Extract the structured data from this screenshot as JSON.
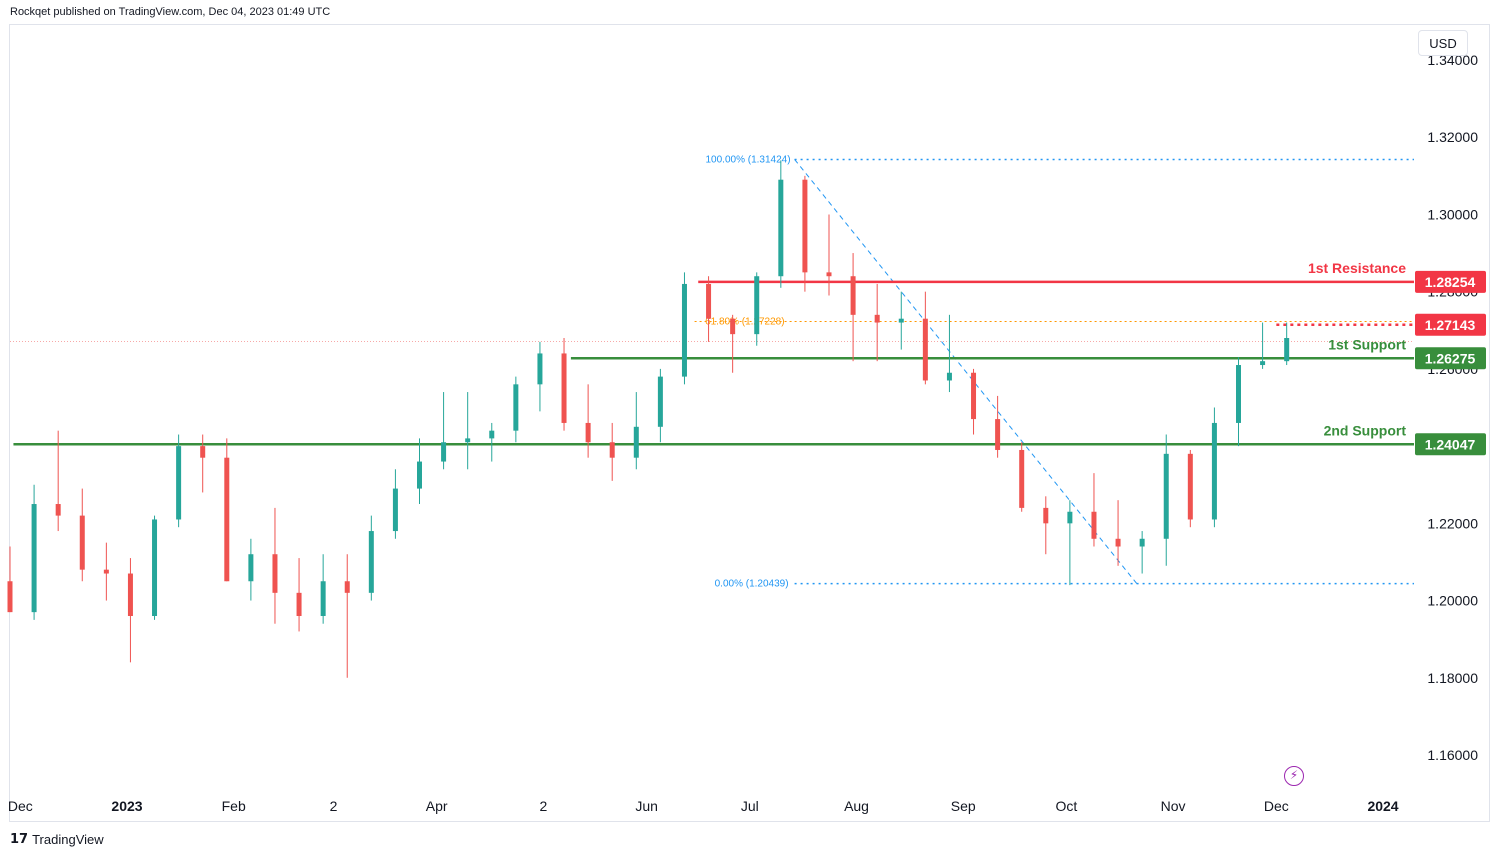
{
  "header": {
    "publisher_text": "Rockqet published on TradingView.com, Dec 04, 2023 01:49 UTC"
  },
  "toolbar": {
    "currency_label": "USD"
  },
  "footer": {
    "logo_mark": "17",
    "logo_text": "TradingView"
  },
  "chart_data": {
    "type": "candlestick",
    "symbol_hint": "GBPUSD daily",
    "ylim": [
      1.15,
      1.345
    ],
    "y_ticks": [
      "1.34000",
      "1.32000",
      "1.30000",
      "1.28000",
      "1.26000",
      "1.24000",
      "1.22000",
      "1.20000",
      "1.18000",
      "1.16000"
    ],
    "x_ticks": [
      {
        "label": "Dec",
        "date": "2022-12-01",
        "bold": false
      },
      {
        "label": "2023",
        "date": "2023-01-01",
        "bold": true
      },
      {
        "label": "Feb",
        "date": "2023-02-01",
        "bold": false
      },
      {
        "label": "2",
        "date": "2023-03-02",
        "bold": false
      },
      {
        "label": "Apr",
        "date": "2023-04-01",
        "bold": false
      },
      {
        "label": "2",
        "date": "2023-05-02",
        "bold": false
      },
      {
        "label": "Jun",
        "date": "2023-06-01",
        "bold": false
      },
      {
        "label": "Jul",
        "date": "2023-07-01",
        "bold": false
      },
      {
        "label": "Aug",
        "date": "2023-08-01",
        "bold": false
      },
      {
        "label": "Sep",
        "date": "2023-09-01",
        "bold": false
      },
      {
        "label": "Oct",
        "date": "2023-10-01",
        "bold": false
      },
      {
        "label": "Nov",
        "date": "2023-11-01",
        "bold": false
      },
      {
        "label": "Dec",
        "date": "2023-12-01",
        "bold": false
      },
      {
        "label": "2024",
        "date": "2024-01-01",
        "bold": true
      }
    ],
    "date_range": [
      "2022-11-28",
      "2024-01-10"
    ],
    "colors": {
      "up": "#26a69a",
      "down": "#ef5350",
      "resistance": "#f23645",
      "support": "#388e3c",
      "fib": "#2196f3",
      "fib_618": "#ff9800",
      "last_price_line": "#ef5350"
    },
    "candles": [
      [
        "2022-11-28",
        1.205,
        1.214,
        1.197,
        1.197
      ],
      [
        "2022-12-05",
        1.197,
        1.23,
        1.195,
        1.225
      ],
      [
        "2022-12-12",
        1.225,
        1.244,
        1.218,
        1.222
      ],
      [
        "2022-12-19",
        1.222,
        1.229,
        1.205,
        1.208
      ],
      [
        "2022-12-26",
        1.208,
        1.215,
        1.2,
        1.207
      ],
      [
        "2023-01-02",
        1.207,
        1.211,
        1.184,
        1.196
      ],
      [
        "2023-01-09",
        1.196,
        1.222,
        1.195,
        1.221
      ],
      [
        "2023-01-16",
        1.221,
        1.243,
        1.219,
        1.24
      ],
      [
        "2023-01-23",
        1.24,
        1.243,
        1.228,
        1.237
      ],
      [
        "2023-01-30",
        1.237,
        1.242,
        1.205,
        1.205
      ],
      [
        "2023-02-06",
        1.205,
        1.216,
        1.2,
        1.212
      ],
      [
        "2023-02-13",
        1.212,
        1.224,
        1.194,
        1.202
      ],
      [
        "2023-02-20",
        1.202,
        1.211,
        1.192,
        1.196
      ],
      [
        "2023-02-27",
        1.196,
        1.212,
        1.194,
        1.205
      ],
      [
        "2023-03-06",
        1.205,
        1.212,
        1.18,
        1.202
      ],
      [
        "2023-03-13",
        1.202,
        1.222,
        1.2,
        1.218
      ],
      [
        "2023-03-20",
        1.218,
        1.234,
        1.216,
        1.229
      ],
      [
        "2023-03-27",
        1.229,
        1.242,
        1.225,
        1.236
      ],
      [
        "2023-04-03",
        1.236,
        1.254,
        1.234,
        1.241
      ],
      [
        "2023-04-10",
        1.241,
        1.254,
        1.234,
        1.242
      ],
      [
        "2023-04-17",
        1.242,
        1.246,
        1.236,
        1.244
      ],
      [
        "2023-04-24",
        1.244,
        1.258,
        1.241,
        1.256
      ],
      [
        "2023-05-01",
        1.256,
        1.267,
        1.249,
        1.264
      ],
      [
        "2023-05-08",
        1.264,
        1.268,
        1.244,
        1.246
      ],
      [
        "2023-05-15",
        1.246,
        1.256,
        1.237,
        1.241
      ],
      [
        "2023-05-22",
        1.241,
        1.246,
        1.231,
        1.237
      ],
      [
        "2023-05-29",
        1.237,
        1.254,
        1.234,
        1.245
      ],
      [
        "2023-06-05",
        1.245,
        1.26,
        1.241,
        1.258
      ],
      [
        "2023-06-12",
        1.258,
        1.285,
        1.256,
        1.282
      ],
      [
        "2023-06-19",
        1.282,
        1.284,
        1.267,
        1.273
      ],
      [
        "2023-06-26",
        1.273,
        1.274,
        1.259,
        1.269
      ],
      [
        "2023-07-03",
        1.269,
        1.285,
        1.266,
        1.284
      ],
      [
        "2023-07-10",
        1.284,
        1.314,
        1.281,
        1.309
      ],
      [
        "2023-07-17",
        1.309,
        1.31,
        1.28,
        1.285
      ],
      [
        "2023-07-24",
        1.285,
        1.3,
        1.279,
        1.284
      ],
      [
        "2023-07-31",
        1.284,
        1.29,
        1.262,
        1.274
      ],
      [
        "2023-08-07",
        1.274,
        1.282,
        1.262,
        1.272
      ],
      [
        "2023-08-14",
        1.272,
        1.28,
        1.265,
        1.273
      ],
      [
        "2023-08-21",
        1.273,
        1.28,
        1.256,
        1.257
      ],
      [
        "2023-08-28",
        1.257,
        1.274,
        1.254,
        1.259
      ],
      [
        "2023-09-04",
        1.259,
        1.26,
        1.243,
        1.247
      ],
      [
        "2023-09-11",
        1.247,
        1.253,
        1.237,
        1.239
      ],
      [
        "2023-09-18",
        1.239,
        1.241,
        1.223,
        1.224
      ],
      [
        "2023-09-25",
        1.224,
        1.227,
        1.212,
        1.22
      ],
      [
        "2023-10-02",
        1.22,
        1.226,
        1.204,
        1.223
      ],
      [
        "2023-10-09",
        1.223,
        1.233,
        1.214,
        1.216
      ],
      [
        "2023-10-16",
        1.216,
        1.226,
        1.209,
        1.214
      ],
      [
        "2023-10-23",
        1.214,
        1.218,
        1.207,
        1.216
      ],
      [
        "2023-10-30",
        1.216,
        1.243,
        1.209,
        1.238
      ],
      [
        "2023-11-06",
        1.238,
        1.239,
        1.219,
        1.221
      ],
      [
        "2023-11-13",
        1.221,
        1.25,
        1.219,
        1.246
      ],
      [
        "2023-11-20",
        1.246,
        1.263,
        1.24,
        1.261
      ],
      [
        "2023-11-27",
        1.261,
        1.272,
        1.26,
        1.262
      ],
      [
        "2023-12-04",
        1.262,
        1.272,
        1.261,
        1.268
      ]
    ],
    "fib": {
      "high": {
        "label": "100.00% (1.31424)",
        "value": 1.31424,
        "date": "2023-07-14"
      },
      "low": {
        "label": "0.00% (1.20439)",
        "value": 1.20439,
        "date": "2023-10-04"
      },
      "mid": {
        "label": "61.80% (1.27228)",
        "value": 1.27228
      }
    },
    "levels": [
      {
        "label": "1st Resistance",
        "value": 1.28254,
        "tag": "1.28254",
        "kind": "resistance",
        "start": "2023-06-16"
      },
      {
        "label": "",
        "value": 1.27143,
        "tag": "1.27143",
        "kind": "current",
        "start": "2023-12-01"
      },
      {
        "label": "1st Support",
        "value": 1.26275,
        "tag": "1.26275",
        "kind": "support",
        "start": "2023-05-10"
      },
      {
        "label": "2nd Support",
        "value": 1.24047,
        "tag": "1.24047",
        "kind": "support",
        "start": "2022-11-29"
      }
    ]
  }
}
